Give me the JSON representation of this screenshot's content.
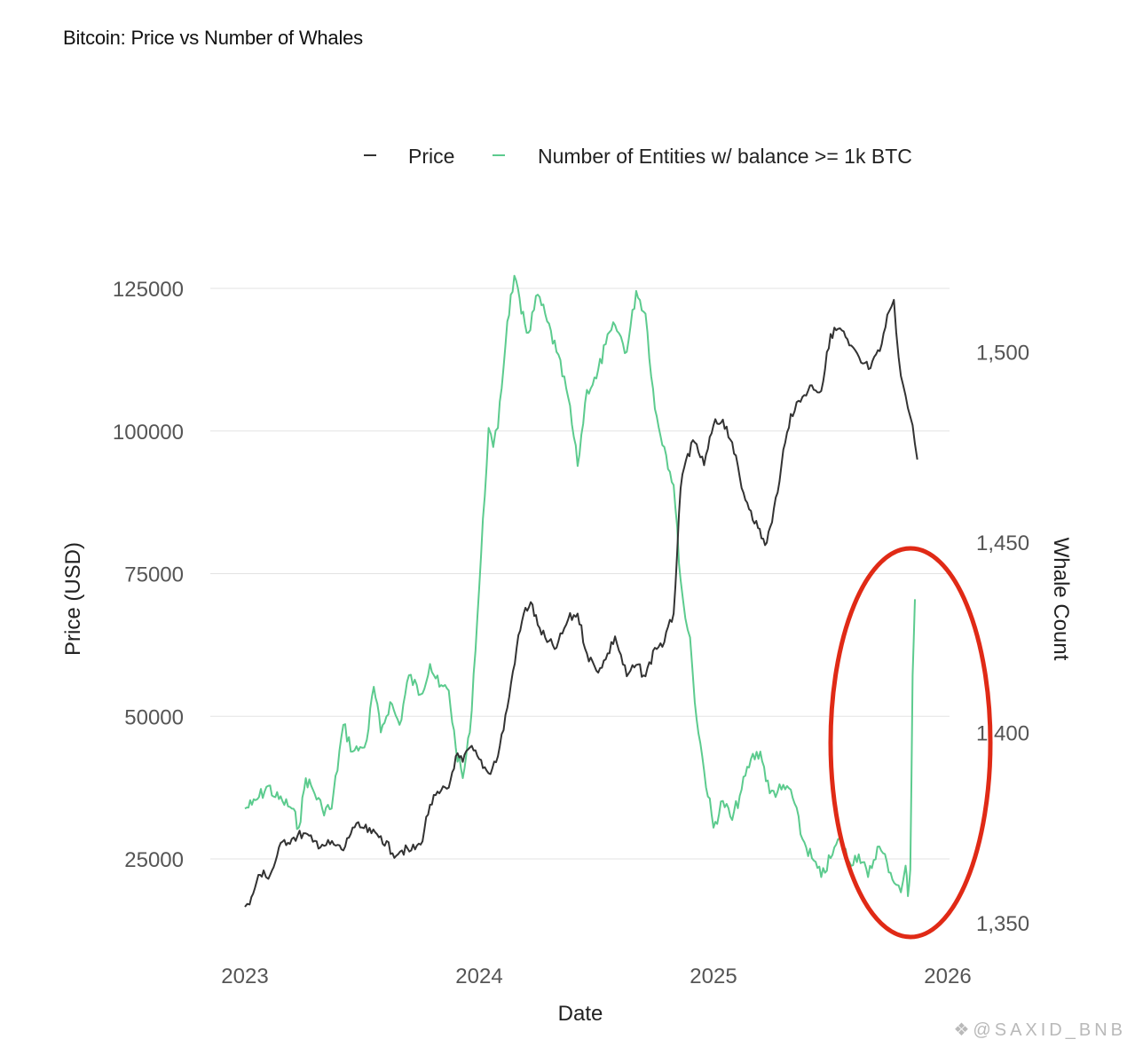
{
  "watermark": "❖@SAXID_BNB",
  "chart_data": {
    "type": "line",
    "title": "Bitcoin: Price vs Number of Whales",
    "xlabel": "Date",
    "ylabel": "Price (USD)",
    "y2label": "Whale Count",
    "x_ticks": [
      "2023",
      "2024",
      "2025",
      "2026"
    ],
    "y_ticks": [
      "25000",
      "50000",
      "75000",
      "100000",
      "125000"
    ],
    "y2_ticks": [
      "1,350",
      "1,400",
      "1,450",
      "1,500"
    ],
    "ylim": [
      10000,
      125000
    ],
    "y2lim": [
      1343,
      1520
    ],
    "xlim": [
      2023.0,
      2026.0
    ],
    "grid": true,
    "legend_position": "top",
    "colors": {
      "price": "#333333",
      "whales": "#5ccb8e",
      "annotation": "#e02a16"
    },
    "annotation": "red ellipse around late-2025 whale count spike",
    "series": [
      {
        "name": "Price",
        "axis": "left",
        "x": [
          2023.0,
          2023.02,
          2023.05,
          2023.08,
          2023.1,
          2023.13,
          2023.16,
          2023.2,
          2023.25,
          2023.29,
          2023.33,
          2023.38,
          2023.42,
          2023.46,
          2023.5,
          2023.54,
          2023.58,
          2023.63,
          2023.67,
          2023.71,
          2023.75,
          2023.79,
          2023.83,
          2023.87,
          2023.9,
          2023.93,
          2023.96,
          2024.0,
          2024.04,
          2024.08,
          2024.12,
          2024.16,
          2024.19,
          2024.22,
          2024.25,
          2024.29,
          2024.33,
          2024.38,
          2024.42,
          2024.46,
          2024.5,
          2024.54,
          2024.58,
          2024.63,
          2024.67,
          2024.71,
          2024.75,
          2024.79,
          2024.83,
          2024.86,
          2024.89,
          2024.92,
          2024.96,
          2025.0,
          2025.04,
          2025.08,
          2025.12,
          2025.16,
          2025.19,
          2025.22,
          2025.25,
          2025.29,
          2025.33,
          2025.38,
          2025.42,
          2025.46,
          2025.5,
          2025.54,
          2025.58,
          2025.63,
          2025.67,
          2025.71,
          2025.75,
          2025.77,
          2025.79,
          2025.81,
          2025.83,
          2025.85,
          2025.87
        ],
        "y": [
          16600,
          17000,
          21000,
          23000,
          21500,
          24500,
          28000,
          28500,
          29500,
          28000,
          27500,
          27500,
          26500,
          30500,
          30500,
          29500,
          29000,
          26000,
          26500,
          26500,
          27500,
          34500,
          36500,
          37500,
          43000,
          42000,
          44500,
          42500,
          40000,
          43000,
          51500,
          62000,
          68000,
          70000,
          66000,
          63000,
          62000,
          67000,
          68000,
          61000,
          58000,
          60000,
          64000,
          57000,
          59000,
          57000,
          62000,
          63000,
          68000,
          90000,
          96000,
          98000,
          94000,
          101000,
          102000,
          98000,
          90000,
          86000,
          83000,
          80000,
          84000,
          94000,
          103000,
          106000,
          108000,
          107000,
          117000,
          118000,
          115000,
          112000,
          111000,
          114000,
          121000,
          123000,
          113000,
          108000,
          104000,
          101000,
          95000
        ]
      },
      {
        "name": "Number of Entities w/ balance >= 1k BTC",
        "axis": "right",
        "x": [
          2023.0,
          2023.03,
          2023.06,
          2023.1,
          2023.13,
          2023.16,
          2023.2,
          2023.23,
          2023.26,
          2023.29,
          2023.33,
          2023.37,
          2023.42,
          2023.46,
          2023.5,
          2023.52,
          2023.55,
          2023.58,
          2023.62,
          2023.66,
          2023.7,
          2023.75,
          2023.79,
          2023.83,
          2023.87,
          2023.9,
          2023.93,
          2023.96,
          2024.0,
          2024.04,
          2024.06,
          2024.08,
          2024.12,
          2024.15,
          2024.18,
          2024.21,
          2024.25,
          2024.29,
          2024.33,
          2024.38,
          2024.42,
          2024.46,
          2024.5,
          2024.54,
          2024.58,
          2024.63,
          2024.67,
          2024.71,
          2024.75,
          2024.79,
          2024.83,
          2024.86,
          2024.88,
          2024.9,
          2024.92,
          2024.96,
          2025.0,
          2025.04,
          2025.08,
          2025.12,
          2025.16,
          2025.2,
          2025.24,
          2025.29,
          2025.33,
          2025.38,
          2025.42,
          2025.46,
          2025.5,
          2025.54,
          2025.58,
          2025.62,
          2025.66,
          2025.7,
          2025.74,
          2025.78,
          2025.8,
          2025.82,
          2025.83,
          2025.84,
          2025.85,
          2025.86
        ],
        "y": [
          1380,
          1381,
          1383,
          1386,
          1383,
          1382,
          1380,
          1375,
          1388,
          1385,
          1380,
          1380,
          1402,
          1395,
          1396,
          1398,
          1412,
          1400,
          1408,
          1402,
          1415,
          1410,
          1418,
          1412,
          1411,
          1396,
          1388,
          1400,
          1438,
          1480,
          1475,
          1480,
          1508,
          1520,
          1510,
          1505,
          1515,
          1508,
          1500,
          1488,
          1470,
          1490,
          1493,
          1502,
          1507,
          1500,
          1516,
          1510,
          1485,
          1475,
          1465,
          1440,
          1430,
          1425,
          1408,
          1390,
          1375,
          1382,
          1377,
          1385,
          1393,
          1395,
          1384,
          1385,
          1385,
          1372,
          1367,
          1362,
          1367,
          1372,
          1366,
          1368,
          1362,
          1370,
          1366,
          1360,
          1358,
          1365,
          1357,
          1364,
          1415,
          1435
        ]
      }
    ]
  }
}
